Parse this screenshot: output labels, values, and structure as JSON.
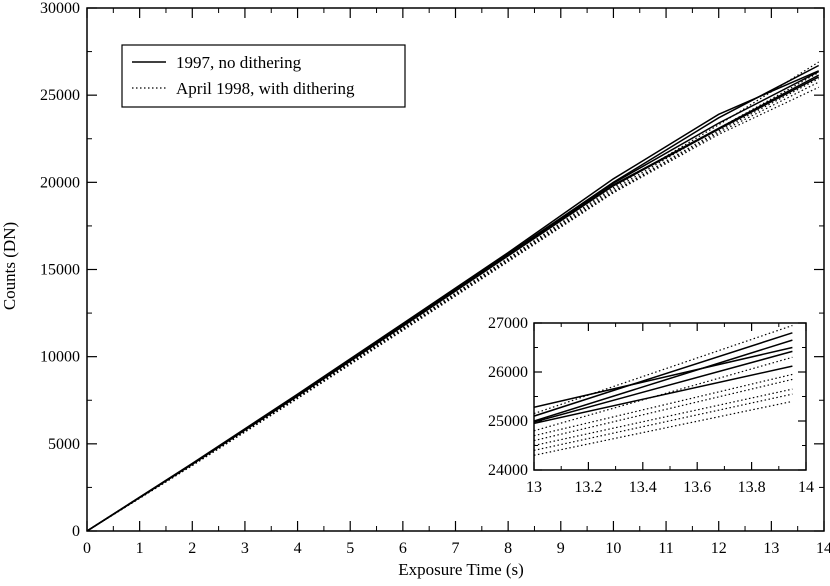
{
  "chart_data": [
    {
      "type": "line",
      "title": "",
      "xlabel": "Exposure Time (s)",
      "ylabel": "Counts (DN)",
      "xlim": [
        0,
        14
      ],
      "ylim": [
        0,
        30000
      ],
      "x_ticks": [
        "0",
        "1",
        "2",
        "3",
        "4",
        "5",
        "6",
        "7",
        "8",
        "9",
        "10",
        "11",
        "12",
        "13",
        "14"
      ],
      "y_ticks": [
        "0",
        "5000",
        "10000",
        "15000",
        "20000",
        "25000",
        "30000"
      ],
      "legend": {
        "placement": "top-left",
        "entries": [
          {
            "label": "1997, no dithering",
            "style": "solid"
          },
          {
            "label": "April 1998, with dithering",
            "style": "dotted"
          }
        ]
      },
      "series": [
        {
          "group": "1997, no dithering",
          "style": "solid",
          "x": [
            0,
            2,
            4,
            6,
            8,
            10,
            12,
            13.9
          ],
          "y": [
            0,
            3880,
            7850,
            11900,
            15970,
            20200,
            23900,
            26400
          ]
        },
        {
          "group": "1997, no dithering",
          "style": "solid",
          "x": [
            0,
            2,
            4,
            6,
            8,
            10,
            12,
            13.9
          ],
          "y": [
            0,
            3860,
            7800,
            11850,
            15900,
            20000,
            23700,
            26700
          ]
        },
        {
          "group": "1997, no dithering",
          "style": "solid",
          "x": [
            0,
            2,
            4,
            6,
            8,
            10,
            12,
            13.9
          ],
          "y": [
            0,
            3850,
            7780,
            11800,
            15850,
            19950,
            23400,
            26350
          ]
        },
        {
          "group": "1997, no dithering",
          "style": "solid",
          "x": [
            0,
            2,
            4,
            6,
            8,
            10,
            12,
            13.9
          ],
          "y": [
            0,
            3840,
            7760,
            11780,
            15800,
            19850,
            23100,
            26150
          ]
        },
        {
          "group": "1997, no dithering",
          "style": "solid",
          "x": [
            0,
            2,
            4,
            6,
            8,
            10,
            12,
            13.9
          ],
          "y": [
            0,
            3830,
            7740,
            11750,
            15780,
            19800,
            23050,
            26050
          ]
        },
        {
          "group": "April 1998, with dithering",
          "style": "dotted",
          "x": [
            0,
            2,
            4,
            6,
            8,
            10,
            12,
            13.9
          ],
          "y": [
            0,
            3820,
            7700,
            11650,
            15650,
            19700,
            23300,
            26900
          ]
        },
        {
          "group": "April 1998, with dithering",
          "style": "dotted",
          "x": [
            0,
            2,
            4,
            6,
            8,
            10,
            12,
            13.9
          ],
          "y": [
            0,
            3800,
            7680,
            11620,
            15600,
            19600,
            23100,
            26300
          ]
        },
        {
          "group": "April 1998, with dithering",
          "style": "dotted",
          "x": [
            0,
            2,
            4,
            6,
            8,
            10,
            12,
            13.9
          ],
          "y": [
            0,
            3780,
            7650,
            11580,
            15550,
            19500,
            22950,
            25950
          ]
        },
        {
          "group": "April 1998, with dithering",
          "style": "dotted",
          "x": [
            0,
            2,
            4,
            6,
            8,
            10,
            12,
            13.9
          ],
          "y": [
            0,
            3770,
            7620,
            11550,
            15500,
            19450,
            22850,
            25750
          ]
        },
        {
          "group": "April 1998, with dithering",
          "style": "dotted",
          "x": [
            0,
            2,
            4,
            6,
            8,
            10,
            12,
            13.9
          ],
          "y": [
            0,
            3750,
            7600,
            11500,
            15450,
            19400,
            22750,
            25450
          ]
        }
      ]
    },
    {
      "type": "line",
      "title": "",
      "xlabel": "",
      "ylabel": "",
      "xlim": [
        13,
        14
      ],
      "ylim": [
        24000,
        27000
      ],
      "x_ticks": [
        "13",
        "13.2",
        "13.4",
        "13.6",
        "13.8",
        "14"
      ],
      "y_ticks": [
        "24000",
        "25000",
        "26000",
        "27000"
      ],
      "series": [
        {
          "style": "solid",
          "x": [
            13,
            13.95
          ],
          "y": [
            25280,
            26500
          ]
        },
        {
          "style": "solid",
          "x": [
            13,
            13.95
          ],
          "y": [
            25100,
            26800
          ]
        },
        {
          "style": "solid",
          "x": [
            13,
            13.95
          ],
          "y": [
            25000,
            26650
          ]
        },
        {
          "style": "solid",
          "x": [
            13,
            13.95
          ],
          "y": [
            24980,
            26420
          ]
        },
        {
          "style": "solid",
          "x": [
            13,
            13.95
          ],
          "y": [
            24950,
            26120
          ]
        },
        {
          "style": "dotted",
          "x": [
            13,
            13.95
          ],
          "y": [
            25150,
            26950
          ]
        },
        {
          "style": "dotted",
          "x": [
            13,
            13.95
          ],
          "y": [
            24800,
            26300
          ]
        },
        {
          "style": "dotted",
          "x": [
            13,
            13.95
          ],
          "y": [
            24700,
            25950
          ]
        },
        {
          "style": "dotted",
          "x": [
            13,
            13.95
          ],
          "y": [
            24600,
            25850
          ]
        },
        {
          "style": "dotted",
          "x": [
            13,
            13.95
          ],
          "y": [
            24500,
            25650
          ]
        },
        {
          "style": "dotted",
          "x": [
            13,
            13.95
          ],
          "y": [
            24400,
            25550
          ]
        },
        {
          "style": "dotted",
          "x": [
            13,
            13.95
          ],
          "y": [
            24300,
            25400
          ]
        }
      ]
    }
  ]
}
